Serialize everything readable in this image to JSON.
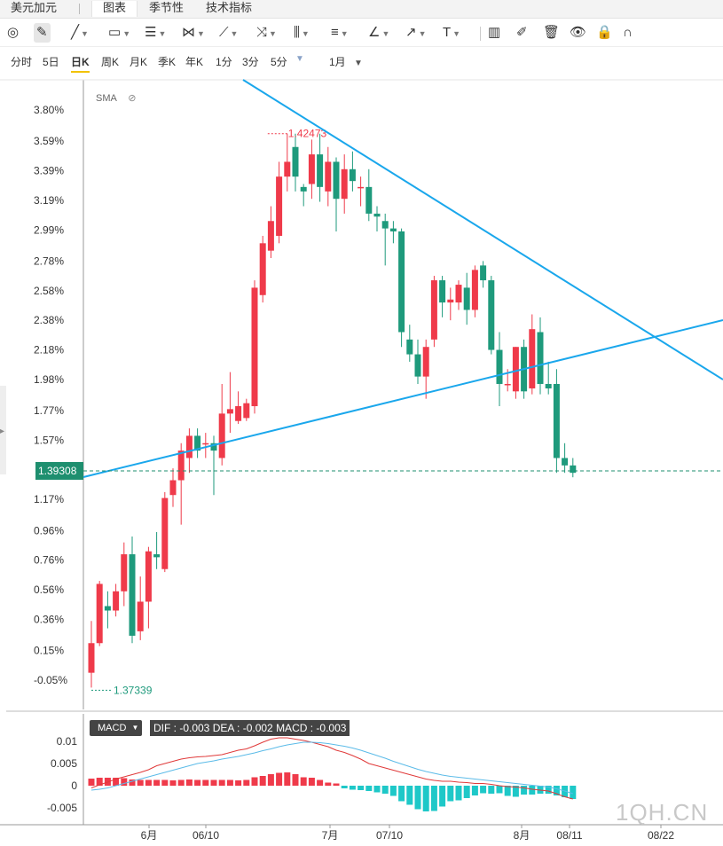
{
  "tabs": [
    {
      "label": "美元加元",
      "active": false
    },
    {
      "label": "图表",
      "active": true
    },
    {
      "label": "季节性",
      "active": false
    },
    {
      "label": "技术指标",
      "active": false
    }
  ],
  "toolbar": {
    "tools": [
      {
        "name": "magnet-icon",
        "glyph": "◎"
      },
      {
        "name": "pencil-edit-icon",
        "glyph": "✎"
      },
      {
        "name": "line-tool-icon",
        "glyph": "╱"
      },
      {
        "name": "rectangle-tool-icon",
        "glyph": "▭"
      },
      {
        "name": "parallel-channel-icon",
        "glyph": "☰"
      },
      {
        "name": "pattern-tool-icon",
        "glyph": "⋈"
      },
      {
        "name": "fibonacci-tool-icon",
        "glyph": "⟋"
      },
      {
        "name": "gann-tool-icon",
        "glyph": "⤨"
      },
      {
        "name": "pitchfork-tool-icon",
        "glyph": "⫼"
      },
      {
        "name": "measure-tool-icon",
        "glyph": "≡"
      },
      {
        "name": "brush-tool-icon",
        "glyph": "∠"
      },
      {
        "name": "arrow-tool-icon",
        "glyph": "↗"
      },
      {
        "name": "text-tool-icon",
        "glyph": "T"
      },
      {
        "name": "bar-chart-icon",
        "glyph": "▥"
      },
      {
        "name": "edit-icon",
        "glyph": "✐"
      },
      {
        "name": "trash-icon",
        "glyph": "🗑"
      },
      {
        "name": "eye-icon",
        "glyph": "👁"
      },
      {
        "name": "lock-icon",
        "glyph": "🔒"
      },
      {
        "name": "magnet-snap-icon",
        "glyph": "∩"
      }
    ]
  },
  "periods": [
    {
      "label": "分时",
      "active": false
    },
    {
      "label": "5日",
      "active": false
    },
    {
      "label": "日K",
      "active": true
    },
    {
      "label": "周K",
      "active": false
    },
    {
      "label": "月K",
      "active": false
    },
    {
      "label": "季K",
      "active": false
    },
    {
      "label": "年K",
      "active": false
    },
    {
      "label": "1分",
      "active": false
    },
    {
      "label": "3分",
      "active": false
    },
    {
      "label": "5分",
      "active": false
    }
  ],
  "range_select": "1月",
  "indicator_label": "SMA",
  "last_price": "1.39308",
  "macd": {
    "label": "MACD",
    "values_text": "DIF : -0.003   DEA : -0.002   MACD : -0.003",
    "y_ticks": [
      "0.01",
      "0.005",
      "0",
      "-0.005"
    ]
  },
  "watermark": "1QH.CN",
  "colors": {
    "up": "#ef3a4a",
    "down": "#1e9a7c",
    "trendline": "#1aa7ec",
    "dif": "#e03a3a",
    "dea": "#5bbbe8"
  },
  "chart_data": {
    "type": "candlestick",
    "y_axis_labels": [
      "3.80%",
      "3.59%",
      "3.39%",
      "3.19%",
      "2.99%",
      "2.78%",
      "2.58%",
      "2.38%",
      "2.18%",
      "1.98%",
      "1.77%",
      "1.57%",
      "1.17%",
      "0.96%",
      "0.76%",
      "0.56%",
      "0.36%",
      "0.15%",
      "-0.05%"
    ],
    "x_axis_labels": [
      "6月",
      "06/10",
      "7月",
      "07/10",
      "8月",
      "08/11",
      "08/22"
    ],
    "high_label": "1.42473",
    "low_label": "1.37339",
    "ylim_pct": [
      -0.05,
      3.8
    ],
    "candles_pct": [
      [
        0.0,
        0.2,
        -0.1,
        0.35
      ],
      [
        0.2,
        0.6,
        0.18,
        0.62
      ],
      [
        0.45,
        0.42,
        0.3,
        0.55
      ],
      [
        0.42,
        0.55,
        0.38,
        0.6
      ],
      [
        0.55,
        0.8,
        0.45,
        0.88
      ],
      [
        0.8,
        0.25,
        0.2,
        0.92
      ],
      [
        0.28,
        0.48,
        0.22,
        0.65
      ],
      [
        0.48,
        0.82,
        0.3,
        0.85
      ],
      [
        0.8,
        0.78,
        0.7,
        0.95
      ],
      [
        0.7,
        1.18,
        0.68,
        1.22
      ],
      [
        1.2,
        1.3,
        1.12,
        1.38
      ],
      [
        1.3,
        1.5,
        1.0,
        1.55
      ],
      [
        1.45,
        1.6,
        1.35,
        1.65
      ],
      [
        1.6,
        1.5,
        1.45,
        1.65
      ],
      [
        1.55,
        1.55,
        1.45,
        1.62
      ],
      [
        1.55,
        1.5,
        1.2,
        1.6
      ],
      [
        1.45,
        1.75,
        1.4,
        1.95
      ],
      [
        1.75,
        1.78,
        1.62,
        2.03
      ],
      [
        1.7,
        1.8,
        1.68,
        1.9
      ],
      [
        1.72,
        1.82,
        1.7,
        1.85
      ],
      [
        1.8,
        2.6,
        1.75,
        2.65
      ],
      [
        2.55,
        2.9,
        2.5,
        2.95
      ],
      [
        2.85,
        3.05,
        2.8,
        3.15
      ],
      [
        2.95,
        3.35,
        2.9,
        3.45
      ],
      [
        3.35,
        3.45,
        3.25,
        3.64
      ],
      [
        3.55,
        3.35,
        3.25,
        3.64
      ],
      [
        3.28,
        3.25,
        3.15,
        3.3
      ],
      [
        3.3,
        3.5,
        3.2,
        3.6
      ],
      [
        3.5,
        3.28,
        3.18,
        3.64
      ],
      [
        3.25,
        3.45,
        3.15,
        3.55
      ],
      [
        3.45,
        3.2,
        2.98,
        3.48
      ],
      [
        3.2,
        3.4,
        3.1,
        3.5
      ],
      [
        3.4,
        3.32,
        3.25,
        3.52
      ],
      [
        3.28,
        3.28,
        3.15,
        3.35
      ],
      [
        3.28,
        3.1,
        3.05,
        3.4
      ],
      [
        3.1,
        3.08,
        2.98,
        3.15
      ],
      [
        3.05,
        3.0,
        2.75,
        3.1
      ],
      [
        3.0,
        2.98,
        2.9,
        3.05
      ],
      [
        2.98,
        2.3,
        2.2,
        3.0
      ],
      [
        2.25,
        2.15,
        2.1,
        2.35
      ],
      [
        2.15,
        2.0,
        1.95,
        2.25
      ],
      [
        2.0,
        2.2,
        1.85,
        2.25
      ],
      [
        2.25,
        2.65,
        2.2,
        2.68
      ],
      [
        2.65,
        2.5,
        2.4,
        2.68
      ],
      [
        2.5,
        2.52,
        2.38,
        2.6
      ],
      [
        2.5,
        2.62,
        2.45,
        2.65
      ],
      [
        2.6,
        2.45,
        2.35,
        2.7
      ],
      [
        2.45,
        2.72,
        2.4,
        2.75
      ],
      [
        2.75,
        2.65,
        2.6,
        2.78
      ],
      [
        2.65,
        2.18,
        2.15,
        2.68
      ],
      [
        2.18,
        1.95,
        1.8,
        2.3
      ],
      [
        1.95,
        1.95,
        1.9,
        2.05
      ],
      [
        1.9,
        2.2,
        1.85,
        2.2
      ],
      [
        2.2,
        1.9,
        1.85,
        2.25
      ],
      [
        1.92,
        2.32,
        1.88,
        2.42
      ],
      [
        2.3,
        1.95,
        1.88,
        2.4
      ],
      [
        1.95,
        1.92,
        1.88,
        2.1
      ],
      [
        1.95,
        1.45,
        1.35,
        2.05
      ],
      [
        1.45,
        1.4,
        1.35,
        1.55
      ],
      [
        1.4,
        1.35,
        1.32,
        1.45
      ]
    ],
    "macd_hist": [
      0.0016,
      0.0018,
      0.0018,
      0.0018,
      0.0017,
      0.0014,
      0.0013,
      0.0013,
      0.0013,
      0.0013,
      0.0012,
      0.0013,
      0.0014,
      0.0013,
      0.0013,
      0.0013,
      0.0013,
      0.0013,
      0.0012,
      0.0013,
      0.0019,
      0.0022,
      0.0026,
      0.0029,
      0.003,
      0.0026,
      0.0019,
      0.0018,
      0.0013,
      0.0007,
      0.0005,
      -0.0006,
      -0.0009,
      -0.001,
      -0.0012,
      -0.0015,
      -0.0018,
      -0.0023,
      -0.0035,
      -0.0043,
      -0.0053,
      -0.0058,
      -0.0057,
      -0.0047,
      -0.0035,
      -0.0033,
      -0.0028,
      -0.0022,
      -0.0017,
      -0.0018,
      -0.0017,
      -0.0023,
      -0.0025,
      -0.002,
      -0.002,
      -0.0018,
      -0.0018,
      -0.0022,
      -0.0026,
      -0.003
    ],
    "macd_dif": [
      -0.0005,
      0.0002,
      0.0008,
      0.0015,
      0.002,
      0.0025,
      0.003,
      0.0036,
      0.0045,
      0.005,
      0.0055,
      0.006,
      0.0063,
      0.0065,
      0.0066,
      0.0068,
      0.007,
      0.0075,
      0.008,
      0.0083,
      0.009,
      0.0098,
      0.0105,
      0.0108,
      0.0108,
      0.0105,
      0.0102,
      0.0098,
      0.0093,
      0.0088,
      0.008,
      0.0075,
      0.0068,
      0.006,
      0.005,
      0.0045,
      0.004,
      0.0035,
      0.003,
      0.0025,
      0.002,
      0.0015,
      0.0012,
      0.001,
      0.001,
      0.0008,
      0.0007,
      0.0005,
      0.0005,
      0.0003,
      0.0,
      -0.0002,
      -0.0003,
      -0.0005,
      -0.0008,
      -0.001,
      -0.0012,
      -0.0018,
      -0.0025,
      -0.003
    ],
    "macd_dea": [
      -0.001,
      -0.0008,
      -0.0005,
      0.0,
      0.0005,
      0.001,
      0.0015,
      0.002,
      0.0025,
      0.003,
      0.0035,
      0.004,
      0.0045,
      0.005,
      0.0053,
      0.0056,
      0.006,
      0.0063,
      0.0066,
      0.007,
      0.0074,
      0.0079,
      0.0083,
      0.0088,
      0.0092,
      0.0095,
      0.0098,
      0.0098,
      0.0097,
      0.0095,
      0.0092,
      0.0089,
      0.0085,
      0.008,
      0.0074,
      0.0068,
      0.0062,
      0.0055,
      0.0049,
      0.0043,
      0.0037,
      0.0032,
      0.0028,
      0.0024,
      0.0021,
      0.0019,
      0.0017,
      0.0015,
      0.0013,
      0.0011,
      0.0009,
      0.0007,
      0.0005,
      0.0003,
      0.0001,
      -0.0001,
      -0.0003,
      -0.0007,
      -0.0012,
      -0.0018
    ]
  }
}
